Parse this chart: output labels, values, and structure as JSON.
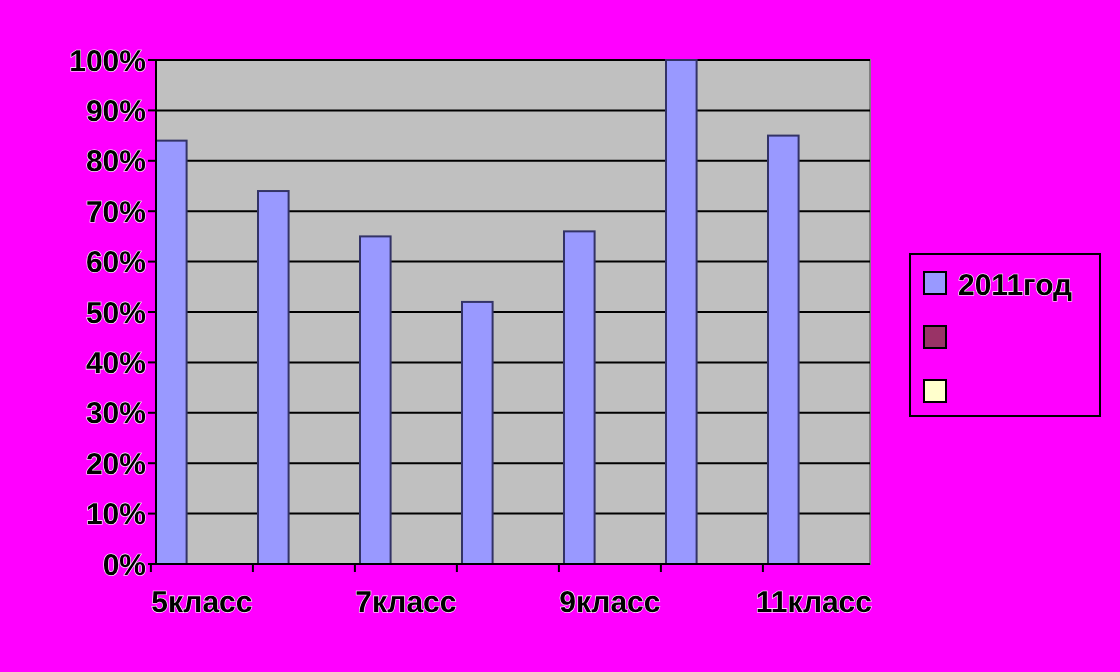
{
  "chart_data": {
    "type": "bar",
    "categories": [
      "5класс",
      null,
      "7класс",
      null,
      "9класс",
      null,
      "11класс"
    ],
    "series": [
      {
        "name": "2011год",
        "color": "#9999ff",
        "values": [
          84,
          74,
          65,
          52,
          66,
          100,
          85
        ]
      },
      {
        "color": "#993366",
        "values": [
          null,
          null,
          null,
          null,
          null,
          null,
          null
        ]
      },
      {
        "color": "#ffffcc",
        "values": [
          null,
          null,
          null,
          null,
          null,
          null,
          null
        ]
      }
    ],
    "ylim": [
      0,
      100
    ],
    "yticks": [
      {
        "value": 0,
        "label": "0%"
      },
      {
        "value": 10,
        "label": "10%"
      },
      {
        "value": 20,
        "label": "20%"
      },
      {
        "value": 30,
        "label": "30%"
      },
      {
        "value": 40,
        "label": "40%"
      },
      {
        "value": 50,
        "label": "50%"
      },
      {
        "value": 60,
        "label": "60%"
      },
      {
        "value": 70,
        "label": "70%"
      },
      {
        "value": 80,
        "label": "80%"
      },
      {
        "value": 90,
        "label": "90%"
      },
      {
        "value": 100,
        "label": "100%"
      }
    ],
    "grid": "y",
    "legend": "right"
  }
}
